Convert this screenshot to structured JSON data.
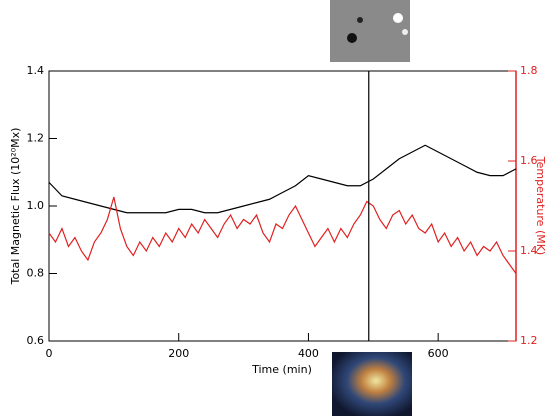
{
  "chart_data": {
    "type": "line",
    "x_label": "Time (min)",
    "y_label": "Total Magnetic Flux (10²⁰Mx)",
    "y2_label": "Temperature (MK)",
    "xlim": [
      0,
      720
    ],
    "xticks": [
      0,
      200,
      400,
      600
    ],
    "ylim": [
      0.6,
      1.4
    ],
    "yticks": [
      0.6,
      0.8,
      {
        "value": 1.0,
        "label": "1.0"
      },
      1.2,
      1.4
    ],
    "y2lim": [
      1.2,
      1.8
    ],
    "y2ticks": [
      1.2,
      1.4,
      1.6,
      1.8
    ],
    "y2_color": "#e02020",
    "vline_x": 493,
    "series": [
      {
        "color": "#000000",
        "x": [
          0,
          20,
          40,
          60,
          80,
          100,
          120,
          140,
          160,
          180,
          200,
          220,
          240,
          260,
          280,
          300,
          320,
          340,
          360,
          380,
          400,
          420,
          440,
          460,
          480,
          500,
          520,
          540,
          560,
          580,
          600,
          620,
          640,
          660,
          680,
          700,
          720
        ],
        "values": [
          1.07,
          1.03,
          1.02,
          1.01,
          1.0,
          0.99,
          0.98,
          0.98,
          0.98,
          0.98,
          0.99,
          0.99,
          0.98,
          0.98,
          0.99,
          1.0,
          1.01,
          1.02,
          1.04,
          1.06,
          1.09,
          1.08,
          1.07,
          1.06,
          1.06,
          1.08,
          1.11,
          1.14,
          1.16,
          1.18,
          1.16,
          1.14,
          1.12,
          1.1,
          1.09,
          1.09,
          1.11
        ]
      },
      {
        "color": "#e02020",
        "axis": "y2",
        "x": [
          0,
          10,
          20,
          30,
          40,
          50,
          60,
          70,
          80,
          90,
          100,
          110,
          120,
          130,
          140,
          150,
          160,
          170,
          180,
          190,
          200,
          210,
          220,
          230,
          240,
          250,
          260,
          270,
          280,
          290,
          300,
          310,
          320,
          330,
          340,
          350,
          360,
          370,
          380,
          390,
          400,
          410,
          420,
          430,
          440,
          450,
          460,
          470,
          480,
          490,
          500,
          510,
          520,
          530,
          540,
          550,
          560,
          570,
          580,
          590,
          600,
          610,
          620,
          630,
          640,
          650,
          660,
          670,
          680,
          690,
          700,
          710,
          720
        ],
        "values": [
          1.44,
          1.42,
          1.45,
          1.41,
          1.43,
          1.4,
          1.38,
          1.42,
          1.44,
          1.47,
          1.52,
          1.45,
          1.41,
          1.39,
          1.42,
          1.4,
          1.43,
          1.41,
          1.44,
          1.42,
          1.45,
          1.43,
          1.46,
          1.44,
          1.47,
          1.45,
          1.43,
          1.46,
          1.48,
          1.45,
          1.47,
          1.46,
          1.48,
          1.44,
          1.42,
          1.46,
          1.45,
          1.48,
          1.5,
          1.47,
          1.44,
          1.41,
          1.43,
          1.45,
          1.42,
          1.45,
          1.43,
          1.46,
          1.48,
          1.51,
          1.5,
          1.47,
          1.45,
          1.48,
          1.49,
          1.46,
          1.48,
          1.45,
          1.44,
          1.46,
          1.42,
          1.44,
          1.41,
          1.43,
          1.4,
          1.42,
          1.39,
          1.41,
          1.4,
          1.42,
          1.39,
          1.37,
          1.35
        ]
      }
    ]
  }
}
